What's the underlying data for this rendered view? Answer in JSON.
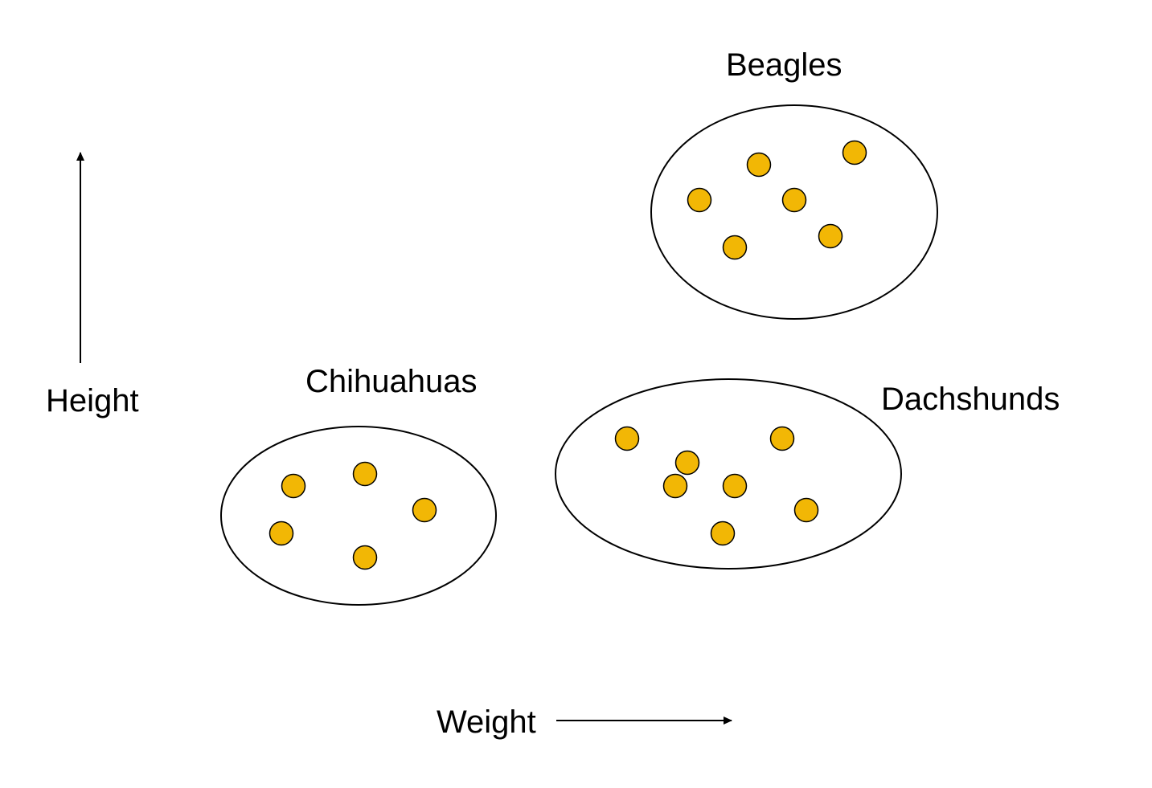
{
  "axes": {
    "y_label": "Height",
    "x_label": "Weight"
  },
  "clusters": [
    {
      "id": "beagles",
      "label": "Beagles",
      "point_count": 6
    },
    {
      "id": "chihuahuas",
      "label": "Chihuahuas",
      "point_count": 5
    },
    {
      "id": "dachshunds",
      "label": "Dachshunds",
      "point_count": 7
    }
  ],
  "colors": {
    "point_fill": "#F2B705",
    "outline": "#000000",
    "background": "#FFFFFF"
  },
  "icons": {
    "y_axis_arrow": "arrow-up-icon",
    "x_axis_arrow": "arrow-right-icon"
  }
}
